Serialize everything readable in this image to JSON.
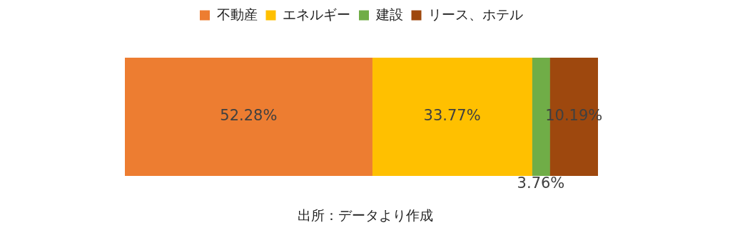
{
  "chart_data": {
    "type": "bar",
    "orientation": "horizontal",
    "stacked": true,
    "categories": [
      null
    ],
    "series": [
      {
        "name": "不動産",
        "color": "#ed7d31",
        "values": [
          52.28
        ],
        "value_labels": [
          "52.28%"
        ]
      },
      {
        "name": "エネルギー",
        "color": "#ffc000",
        "values": [
          33.77
        ],
        "value_labels": [
          "33.77%"
        ]
      },
      {
        "name": "建設",
        "color": "#70ad47",
        "values": [
          3.76
        ],
        "value_labels": [
          "3.76%"
        ]
      },
      {
        "name": "リース、ホテル",
        "color": "#9e480e",
        "values": [
          10.19
        ],
        "value_labels": [
          "10.19%"
        ]
      }
    ],
    "legend": "top",
    "annotations": [
      "出所：データより作成"
    ]
  }
}
